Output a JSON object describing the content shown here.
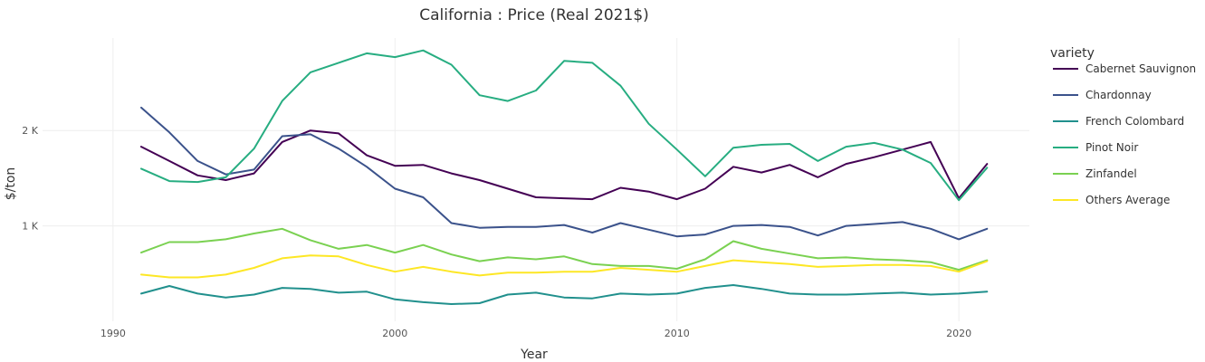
{
  "chart_data": {
    "type": "line",
    "title": "California : Price (Real 2021$)",
    "xlabel": "Year",
    "ylabel": "$/ton",
    "xlim": [
      1987.5,
      2022.5
    ],
    "ylim": [
      0,
      2970
    ],
    "x_ticks": [
      1990,
      2000,
      2010,
      2020
    ],
    "y_ticks": [
      {
        "value": 1000,
        "label": "1 K"
      },
      {
        "value": 2000,
        "label": "2 K"
      }
    ],
    "grid": true,
    "legend_title": "variety",
    "legend_position": "right",
    "x": [
      1991,
      1992,
      1993,
      1994,
      1995,
      1996,
      1997,
      1998,
      1999,
      2000,
      2001,
      2002,
      2003,
      2004,
      2005,
      2006,
      2007,
      2008,
      2009,
      2010,
      2011,
      2012,
      2013,
      2014,
      2015,
      2016,
      2017,
      2018,
      2019,
      2020,
      2021
    ],
    "series": [
      {
        "name": "Cabernet Sauvignon",
        "color": "#440154",
        "values": [
          1830,
          1680,
          1530,
          1480,
          1550,
          1880,
          2000,
          1970,
          1740,
          1630,
          1640,
          1550,
          1480,
          1390,
          1300,
          1290,
          1280,
          1400,
          1360,
          1280,
          1390,
          1620,
          1560,
          1640,
          1510,
          1650,
          1720,
          1800,
          1880,
          1290,
          1650
        ]
      },
      {
        "name": "Chardonnay",
        "color": "#3b528b",
        "values": [
          2240,
          1980,
          1680,
          1540,
          1590,
          1940,
          1960,
          1810,
          1620,
          1390,
          1300,
          1030,
          980,
          990,
          990,
          1010,
          930,
          1030,
          960,
          890,
          910,
          1000,
          1010,
          990,
          900,
          1000,
          1020,
          1040,
          970,
          860,
          970
        ]
      },
      {
        "name": "French Colombard",
        "color": "#21908d",
        "values": [
          290,
          370,
          290,
          250,
          280,
          350,
          340,
          300,
          310,
          230,
          200,
          180,
          190,
          280,
          300,
          250,
          240,
          290,
          280,
          290,
          350,
          380,
          340,
          290,
          280,
          280,
          290,
          300,
          280,
          290,
          310
        ]
      },
      {
        "name": "Pinot Noir",
        "color": "#27ad81",
        "values": [
          1600,
          1470,
          1460,
          1510,
          1810,
          2310,
          2610,
          2710,
          2810,
          2770,
          2840,
          2690,
          2370,
          2310,
          2420,
          2730,
          2710,
          2470,
          2070,
          1800,
          1520,
          1820,
          1850,
          1860,
          1680,
          1830,
          1870,
          1800,
          1660,
          1270,
          1610
        ]
      },
      {
        "name": "Zinfandel",
        "color": "#7ad151",
        "values": [
          720,
          830,
          830,
          860,
          920,
          970,
          850,
          760,
          800,
          720,
          800,
          700,
          630,
          670,
          650,
          680,
          600,
          580,
          580,
          550,
          650,
          840,
          760,
          710,
          660,
          670,
          650,
          640,
          620,
          540,
          640
        ]
      },
      {
        "name": "Others Average",
        "color": "#fde725",
        "values": [
          490,
          460,
          460,
          490,
          560,
          660,
          690,
          680,
          590,
          520,
          570,
          520,
          480,
          510,
          510,
          520,
          520,
          560,
          540,
          520,
          580,
          640,
          620,
          600,
          570,
          580,
          590,
          590,
          580,
          520,
          630
        ]
      }
    ]
  }
}
